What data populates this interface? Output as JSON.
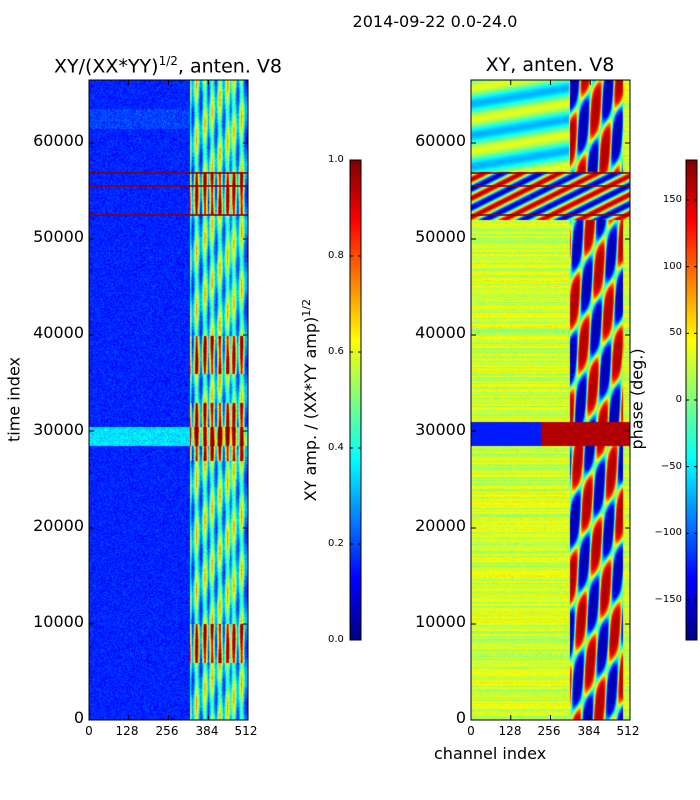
{
  "suptitle": "2014-09-22 0.0-24.0",
  "chart_data": [
    {
      "type": "heatmap",
      "title": "XY/(XX*YY)",
      "title_exponent": "1/2",
      "title_suffix": ", anten. V8",
      "xlabel": "",
      "ylabel": "time index",
      "xlim": [
        0,
        512
      ],
      "ylim": [
        0,
        66500
      ],
      "x_ticks": [
        0,
        128,
        256,
        384,
        512
      ],
      "y_ticks": [
        0,
        10000,
        20000,
        30000,
        40000,
        50000,
        60000
      ],
      "colormap": "jet",
      "colorbar": {
        "label_prefix": "XY amp. / (XX*YY amp)",
        "label_exponent": "1/2",
        "range": [
          0.0,
          1.0
        ],
        "ticks": [
          "0.0",
          "0.2",
          "0.4",
          "0.6",
          "0.8",
          "1.0"
        ]
      },
      "bright_channel_columns": [
        320,
        345,
        372,
        395,
        420,
        445,
        465,
        490
      ],
      "high_amplitude_time_ranges": [
        [
          6000,
          10000
        ],
        [
          27000,
          33000
        ],
        [
          36000,
          40000
        ],
        [
          52500,
          57000
        ]
      ],
      "flagged_rows": [
        52500,
        55500,
        56800
      ]
    },
    {
      "type": "heatmap",
      "title": "XY, anten. V8",
      "xlabel": "channel index",
      "ylabel": "",
      "xlim": [
        0,
        512
      ],
      "ylim": [
        0,
        66500
      ],
      "x_ticks": [
        0,
        128,
        256,
        384,
        512
      ],
      "y_ticks": [
        0,
        10000,
        20000,
        30000,
        40000,
        50000,
        60000
      ],
      "colormap": "jet",
      "colorbar": {
        "label": "phase (deg.)",
        "range": [
          -180,
          180
        ],
        "ticks": [
          "−150",
          "−100",
          "−50",
          "0",
          "50",
          "100",
          "150"
        ]
      },
      "flagged_rows": [
        52500,
        55500,
        56800
      ]
    }
  ],
  "colors": {
    "axis": "#000000",
    "flag_row": "#8b0000",
    "background": "#ffffff"
  }
}
